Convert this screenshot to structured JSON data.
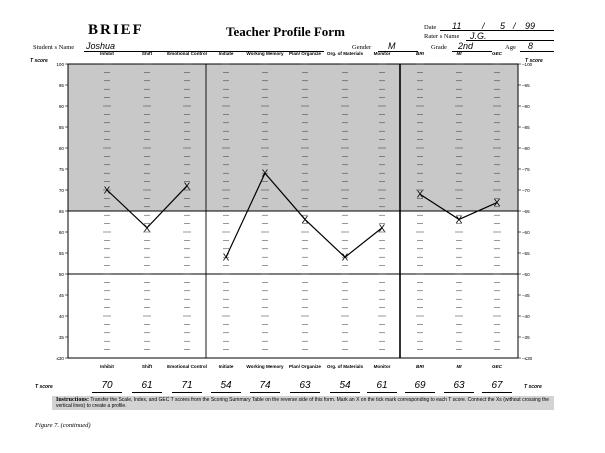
{
  "header": {
    "logo": "BRIEF",
    "title": "Teacher Profile Form",
    "date_label": "Date",
    "date_month": "11",
    "date_sep1": "/",
    "date_day": "5",
    "date_sep2": "/",
    "date_year": "99",
    "rater_label": "Rater s Name",
    "rater_value": "J.G.",
    "student_label": "Student s Name",
    "student_value": "Joshua",
    "gender_label": "Gender",
    "gender_value": "M",
    "grade_label": "Grade",
    "grade_value": "2nd",
    "age_label": "Age",
    "age_value": "8"
  },
  "t_score_label": "T score",
  "scales": [
    {
      "top": "Inhibit",
      "bottom": "Inhibit",
      "score": "70",
      "value": 70
    },
    {
      "top": "Shift",
      "bottom": "Shift",
      "score": "61",
      "value": 61
    },
    {
      "top": "Emotional Control",
      "bottom": "Emotional Control",
      "score": "71",
      "value": 71
    },
    {
      "top": "Initiate",
      "bottom": "Initiate",
      "score": "54",
      "value": 54
    },
    {
      "top": "Working Memory",
      "bottom": "Working Memory",
      "score": "74",
      "value": 74
    },
    {
      "top": "Plan/ Organize",
      "bottom": "Plan/ Organize",
      "score": "63",
      "value": 63
    },
    {
      "top": "Org. of Materials",
      "bottom": "Org. of Materials",
      "score": "54",
      "value": 54
    },
    {
      "top": "Monitor",
      "bottom": "Monitor",
      "score": "61",
      "value": 61
    },
    {
      "top": "BRI",
      "bottom": "BRI",
      "score": "69",
      "value": 69
    },
    {
      "top": "MI",
      "bottom": "MI",
      "score": "63",
      "value": 63
    },
    {
      "top": "GEC",
      "bottom": "GEC",
      "score": "67",
      "value": 67
    }
  ],
  "y_ticks": [
    "100",
    "95",
    "90",
    "85",
    "80",
    "75",
    "70",
    "65",
    "60",
    "55",
    "50",
    "45",
    "40",
    "35",
    "30",
    "25",
    "≤30"
  ],
  "y_scale": {
    "min": 30,
    "max": 100,
    "shade_from": 65
  },
  "mark_symbol": "X",
  "instructions_title": "Instructions:",
  "instructions_text": " Transfer the Scale, Index, and GEC T scores from the Scoring Summary Table on the reverse side of this form. Mark an X on the tick mark corresponding to each T score. Connect the Xs (without crossing the vertical lines) to create a profile.",
  "caption": "Figure 7. (continued)"
}
